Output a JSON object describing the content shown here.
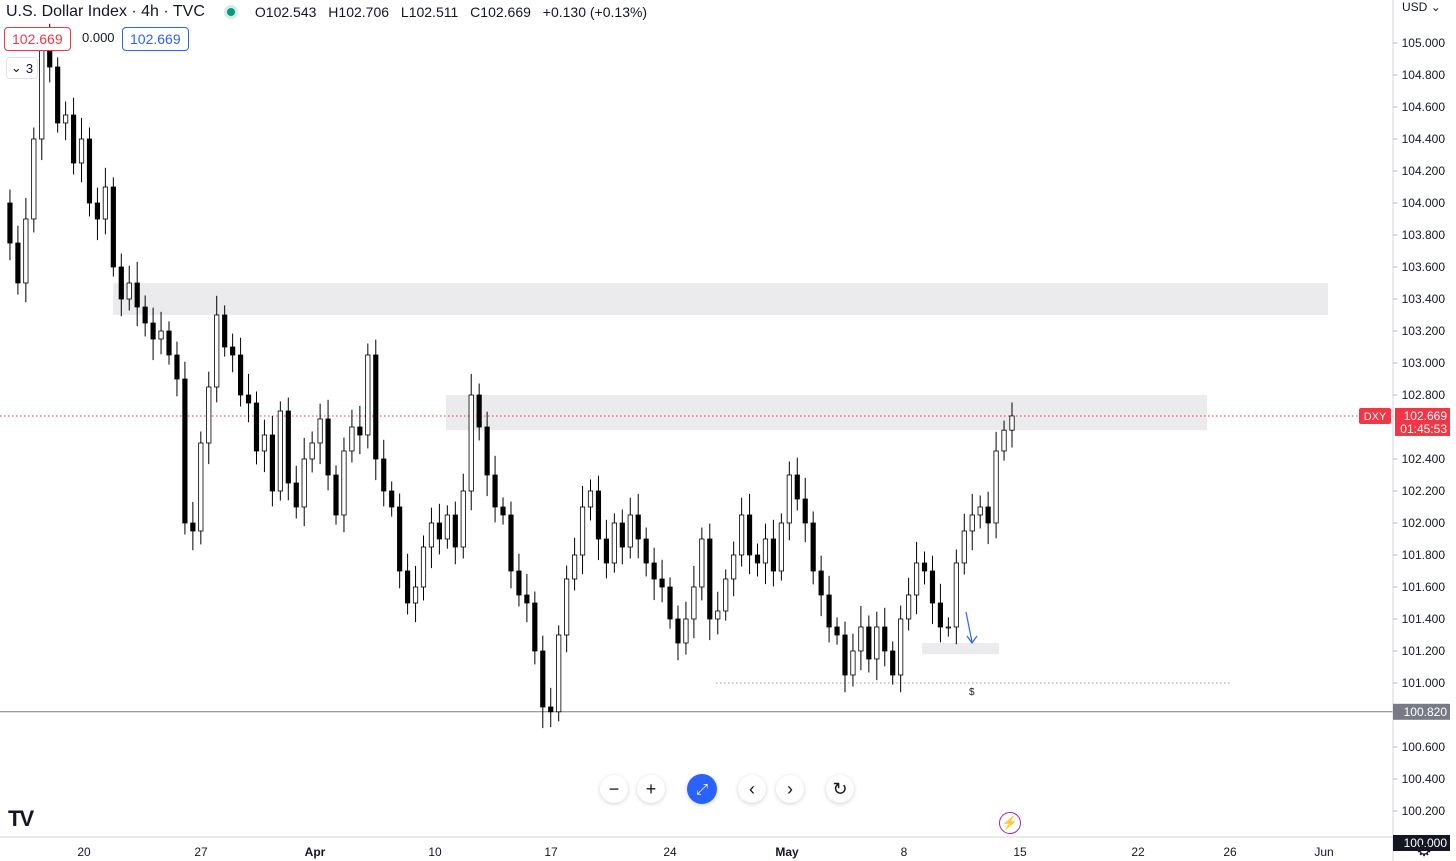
{
  "header": {
    "title": "U.S. Dollar Index · 4h · TVC",
    "ohlc": [
      {
        "k": "O",
        "v": "102.543"
      },
      {
        "k": "H",
        "v": "102.706"
      },
      {
        "k": "L",
        "v": "102.511"
      },
      {
        "k": "C",
        "v": "102.669"
      },
      {
        "k": "",
        "v": "+0.130 (+0.13%)"
      }
    ],
    "sell_price": "102.669",
    "spread": "0.000",
    "buy_price": "102.669",
    "collapse_count": "3"
  },
  "axis": {
    "currency": "USD",
    "symbol_badge": "DXY",
    "last_price": "102.669",
    "countdown": "01:45:53",
    "crosshair_price": "100.820",
    "bottom_price": "100.000"
  },
  "annotation": {
    "dollar_marker": "$"
  },
  "colors": {
    "up": "#ffffff",
    "down": "#000000",
    "last_price": "#f23645",
    "zone": "#ebebed",
    "accent": "#2962ff",
    "bolt": "#9c27b0"
  },
  "controls": [
    "zoom-out",
    "zoom-in",
    "reset-scale",
    "scroll-left",
    "scroll-right",
    "reset-chart"
  ],
  "chart_data": {
    "type": "candlestick",
    "title": "U.S. Dollar Index · 4h · TVC",
    "ylim": [
      99.95,
      105.15
    ],
    "y_ticks": [
      "105.000",
      "104.800",
      "104.600",
      "104.400",
      "104.200",
      "104.000",
      "103.800",
      "103.600",
      "103.400",
      "103.200",
      "103.000",
      "102.800",
      "102.400",
      "102.200",
      "102.000",
      "101.800",
      "101.600",
      "101.400",
      "101.200",
      "101.000",
      "100.600",
      "100.400",
      "100.200"
    ],
    "y_tick_values": [
      105.0,
      104.8,
      104.6,
      104.4,
      104.2,
      104.0,
      103.8,
      103.6,
      103.4,
      103.2,
      103.0,
      102.8,
      102.4,
      102.2,
      102.0,
      101.8,
      101.6,
      101.4,
      101.2,
      101.0,
      100.6,
      100.4,
      100.2
    ],
    "x_ticks": [
      "20",
      "27",
      "Apr",
      "10",
      "17",
      "24",
      "May",
      "8",
      "15",
      "22",
      "26",
      "Jun"
    ],
    "x_tick_bold": [
      "Apr",
      "May"
    ],
    "last_close": 102.669,
    "horizontal_levels": [
      {
        "name": "last-price",
        "value": 102.669,
        "style": "dotted",
        "color": "#f23645"
      },
      {
        "name": "crosshair",
        "value": 100.82,
        "style": "solid",
        "color": "#787b86"
      },
      {
        "name": "liquidity-low",
        "value": 101.0,
        "style": "dotted",
        "color": "#9598a1"
      }
    ],
    "zones": [
      {
        "name": "upper-supply-zone",
        "from": 103.3,
        "to": 103.5
      },
      {
        "name": "mid-supply-zone",
        "from": 102.58,
        "to": 102.8
      },
      {
        "name": "demand-zone",
        "from": 101.18,
        "to": 101.25
      }
    ],
    "series": [
      {
        "points": [
          104.0,
          103.75,
          103.5,
          103.9,
          104.4,
          105.0,
          104.85,
          104.5,
          104.55,
          104.25,
          104.4,
          104.0,
          103.9,
          104.1,
          103.6,
          103.4,
          103.5,
          103.35,
          103.25,
          103.15,
          103.2,
          103.05,
          102.9,
          102.0,
          101.95,
          102.5,
          102.85,
          103.3,
          103.1,
          103.05,
          102.8,
          102.75,
          102.45,
          102.55,
          102.2,
          102.7,
          102.25,
          102.1,
          102.4,
          102.5,
          102.65,
          102.3,
          102.05,
          102.45,
          102.6,
          102.55,
          103.05,
          102.4,
          102.2,
          102.1,
          101.7,
          101.5,
          101.6,
          101.85,
          102.0,
          101.9,
          102.05,
          101.85,
          102.2,
          102.8,
          102.6,
          102.3,
          102.1,
          102.05,
          101.7,
          101.55,
          101.5,
          101.2,
          100.85,
          100.82,
          101.3,
          101.65,
          101.8,
          102.1,
          102.2,
          101.9,
          101.75,
          102.0,
          101.85,
          102.05,
          101.9,
          101.75,
          101.65,
          101.6,
          101.4,
          101.25,
          101.4,
          101.6,
          101.9,
          101.4,
          101.45,
          101.65,
          101.8,
          102.05,
          101.8,
          101.75,
          101.9,
          101.7,
          102.0,
          102.3,
          102.15,
          102.0,
          101.7,
          101.55,
          101.35,
          101.3,
          101.05,
          101.2,
          101.35,
          101.15,
          101.35,
          101.2,
          101.05,
          101.4,
          101.55,
          101.75,
          101.7,
          101.5,
          101.35,
          101.35,
          101.75,
          101.95,
          102.05,
          102.1,
          102.0,
          102.45,
          102.58,
          102.669
        ]
      }
    ],
    "note": "points are approximate 4h closes read from the price axis"
  }
}
